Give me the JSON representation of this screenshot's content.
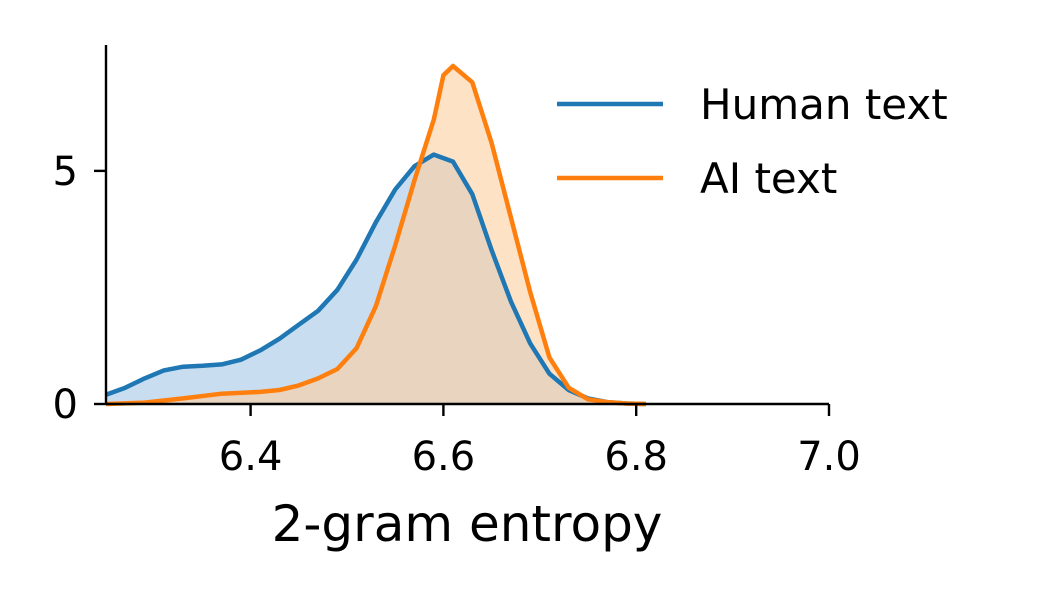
{
  "chart_data": {
    "type": "area",
    "xlabel": "2-gram entropy",
    "ylabel": "",
    "xlim": [
      6.25,
      7.0
    ],
    "ylim": [
      0,
      7.7
    ],
    "xticks": [
      6.4,
      6.6,
      6.8,
      7.0
    ],
    "xtick_labels": [
      "6.4",
      "6.6",
      "6.8",
      "7.0"
    ],
    "yticks": [
      0,
      5
    ],
    "ytick_labels": [
      "0",
      "5"
    ],
    "legend": {
      "placement": "top-right",
      "frame": false
    },
    "series": [
      {
        "name": "Human text",
        "color": "#1f77b4",
        "fill": "#c6dbef",
        "x": [
          6.25,
          6.27,
          6.29,
          6.31,
          6.33,
          6.35,
          6.37,
          6.39,
          6.41,
          6.43,
          6.45,
          6.47,
          6.49,
          6.51,
          6.53,
          6.55,
          6.57,
          6.59,
          6.61,
          6.63,
          6.65,
          6.67,
          6.69,
          6.71,
          6.73,
          6.75,
          6.77,
          6.79,
          6.81
        ],
        "values": [
          0.2,
          0.35,
          0.55,
          0.72,
          0.8,
          0.82,
          0.85,
          0.95,
          1.15,
          1.4,
          1.7,
          2.0,
          2.45,
          3.1,
          3.9,
          4.6,
          5.1,
          5.35,
          5.2,
          4.5,
          3.3,
          2.2,
          1.3,
          0.65,
          0.3,
          0.12,
          0.04,
          0.01,
          0.0
        ]
      },
      {
        "name": "AI text",
        "color": "#ff7f0e",
        "fill": "#fdd0a2",
        "x": [
          6.25,
          6.29,
          6.33,
          6.37,
          6.41,
          6.43,
          6.45,
          6.47,
          6.49,
          6.51,
          6.53,
          6.55,
          6.57,
          6.59,
          6.6,
          6.61,
          6.63,
          6.65,
          6.67,
          6.69,
          6.71,
          6.73,
          6.75,
          6.77,
          6.79,
          6.81
        ],
        "values": [
          0.0,
          0.03,
          0.12,
          0.22,
          0.26,
          0.3,
          0.4,
          0.55,
          0.75,
          1.2,
          2.1,
          3.4,
          4.8,
          6.1,
          7.05,
          7.25,
          6.9,
          5.6,
          4.0,
          2.4,
          1.0,
          0.35,
          0.1,
          0.04,
          0.01,
          0.0
        ]
      }
    ]
  }
}
